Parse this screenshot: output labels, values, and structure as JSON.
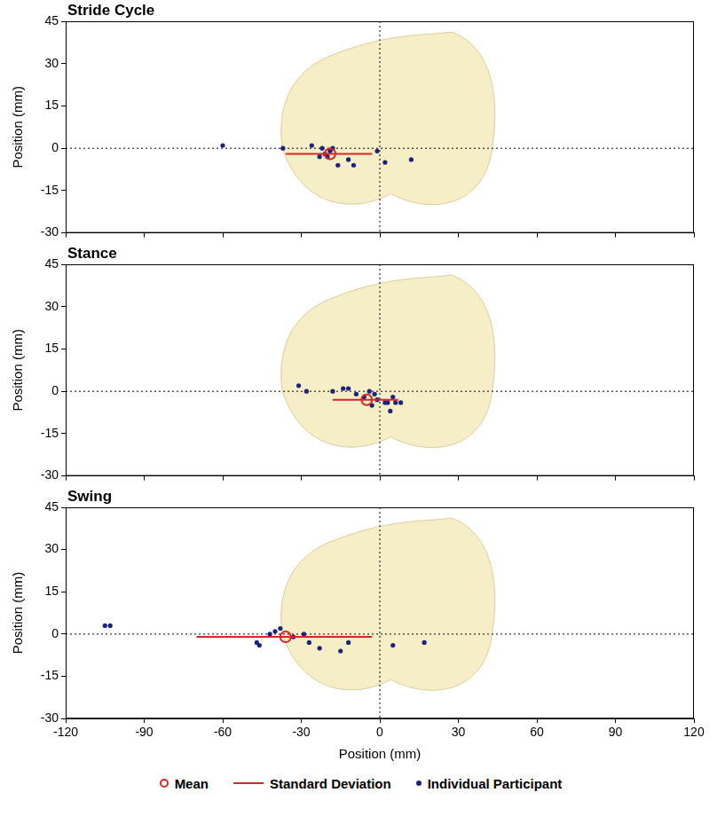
{
  "chart_data": [
    {
      "type": "scatter",
      "title": "Stride Cycle",
      "ylabel": "Position (mm)",
      "xlim": [
        -120,
        120
      ],
      "xticks": [
        -120,
        -90,
        -60,
        -30,
        0,
        30,
        60,
        90,
        120
      ],
      "ylim": [
        -30,
        45
      ],
      "yticks": [
        -30,
        -15,
        0,
        15,
        30,
        45
      ],
      "tick_labels": "y",
      "x_ref": 0,
      "y_ref": 0,
      "series": [
        {
          "name": "Individual Participant",
          "color": "#1a237e",
          "marker": "dot",
          "x": [
            -60,
            -37,
            -26,
            -23,
            -22,
            -21,
            -20,
            -19,
            -18,
            -16,
            -12,
            -10,
            -1,
            2,
            12
          ],
          "y": [
            1,
            0,
            1,
            -3,
            0,
            -2,
            -3,
            -1,
            0,
            -6,
            -4,
            -6,
            -1,
            -5,
            -4
          ]
        },
        {
          "name": "Standard Deviation",
          "color": "#d62728",
          "type": "line",
          "line_style": "solid",
          "x": [
            -36,
            -3
          ],
          "y": [
            -2,
            -2
          ]
        },
        {
          "name": "Mean",
          "color": "#d62728",
          "marker": "open_circle",
          "x": [
            -19
          ],
          "y": [
            -2
          ]
        }
      ]
    },
    {
      "type": "scatter",
      "title": "Stance",
      "ylabel": "Position (mm)",
      "xlim": [
        -120,
        120
      ],
      "xticks": [
        -120,
        -90,
        -60,
        -30,
        0,
        30,
        60,
        90,
        120
      ],
      "ylim": [
        -30,
        45
      ],
      "yticks": [
        -30,
        -15,
        0,
        15,
        30,
        45
      ],
      "tick_labels": "y",
      "x_ref": 0,
      "y_ref": 0,
      "series": [
        {
          "name": "Individual Participant",
          "color": "#1a237e",
          "marker": "dot",
          "x": [
            -31,
            -28,
            -18,
            -14,
            -12,
            -9,
            -6,
            -4,
            -3,
            -2,
            -1,
            2,
            3,
            4,
            5,
            6,
            8
          ],
          "y": [
            2,
            0,
            0,
            1,
            1,
            -1,
            -2,
            0,
            -5,
            -1,
            -3,
            -4,
            -4,
            -7,
            -2,
            -4,
            -4
          ]
        },
        {
          "name": "Standard Deviation",
          "color": "#d62728",
          "type": "line",
          "line_style": "solid",
          "x": [
            -18,
            7
          ],
          "y": [
            -3,
            -3
          ]
        },
        {
          "name": "Mean",
          "color": "#d62728",
          "marker": "open_circle",
          "x": [
            -5
          ],
          "y": [
            -3
          ]
        }
      ]
    },
    {
      "type": "scatter",
      "title": "Swing",
      "ylabel": "Position (mm)",
      "xlabel": "Position (mm)",
      "xlim": [
        -120,
        120
      ],
      "xticks": [
        -120,
        -90,
        -60,
        -30,
        0,
        30,
        60,
        90,
        120
      ],
      "ylim": [
        -30,
        45
      ],
      "yticks": [
        -30,
        -15,
        0,
        15,
        30,
        45
      ],
      "x_ref": 0,
      "y_ref": 0,
      "legend": "bottom",
      "series": [
        {
          "name": "Individual Participant",
          "color": "#1a237e",
          "marker": "dot",
          "x": [
            -105,
            -103,
            -47,
            -46,
            -42,
            -40,
            -38,
            -33,
            -29,
            -27,
            -23,
            -15,
            -12,
            5,
            17
          ],
          "y": [
            3,
            3,
            -3,
            -4,
            0,
            1,
            2,
            -1,
            0,
            -3,
            -5,
            -6,
            -3,
            -4,
            -3
          ]
        },
        {
          "name": "Standard Deviation",
          "color": "#d62728",
          "type": "line",
          "line_style": "solid",
          "x": [
            -70,
            -3
          ],
          "y": [
            -1,
            -1
          ]
        },
        {
          "name": "Mean",
          "color": "#d62728",
          "marker": "open_circle",
          "x": [
            -36
          ],
          "y": [
            -1
          ]
        }
      ]
    }
  ]
}
